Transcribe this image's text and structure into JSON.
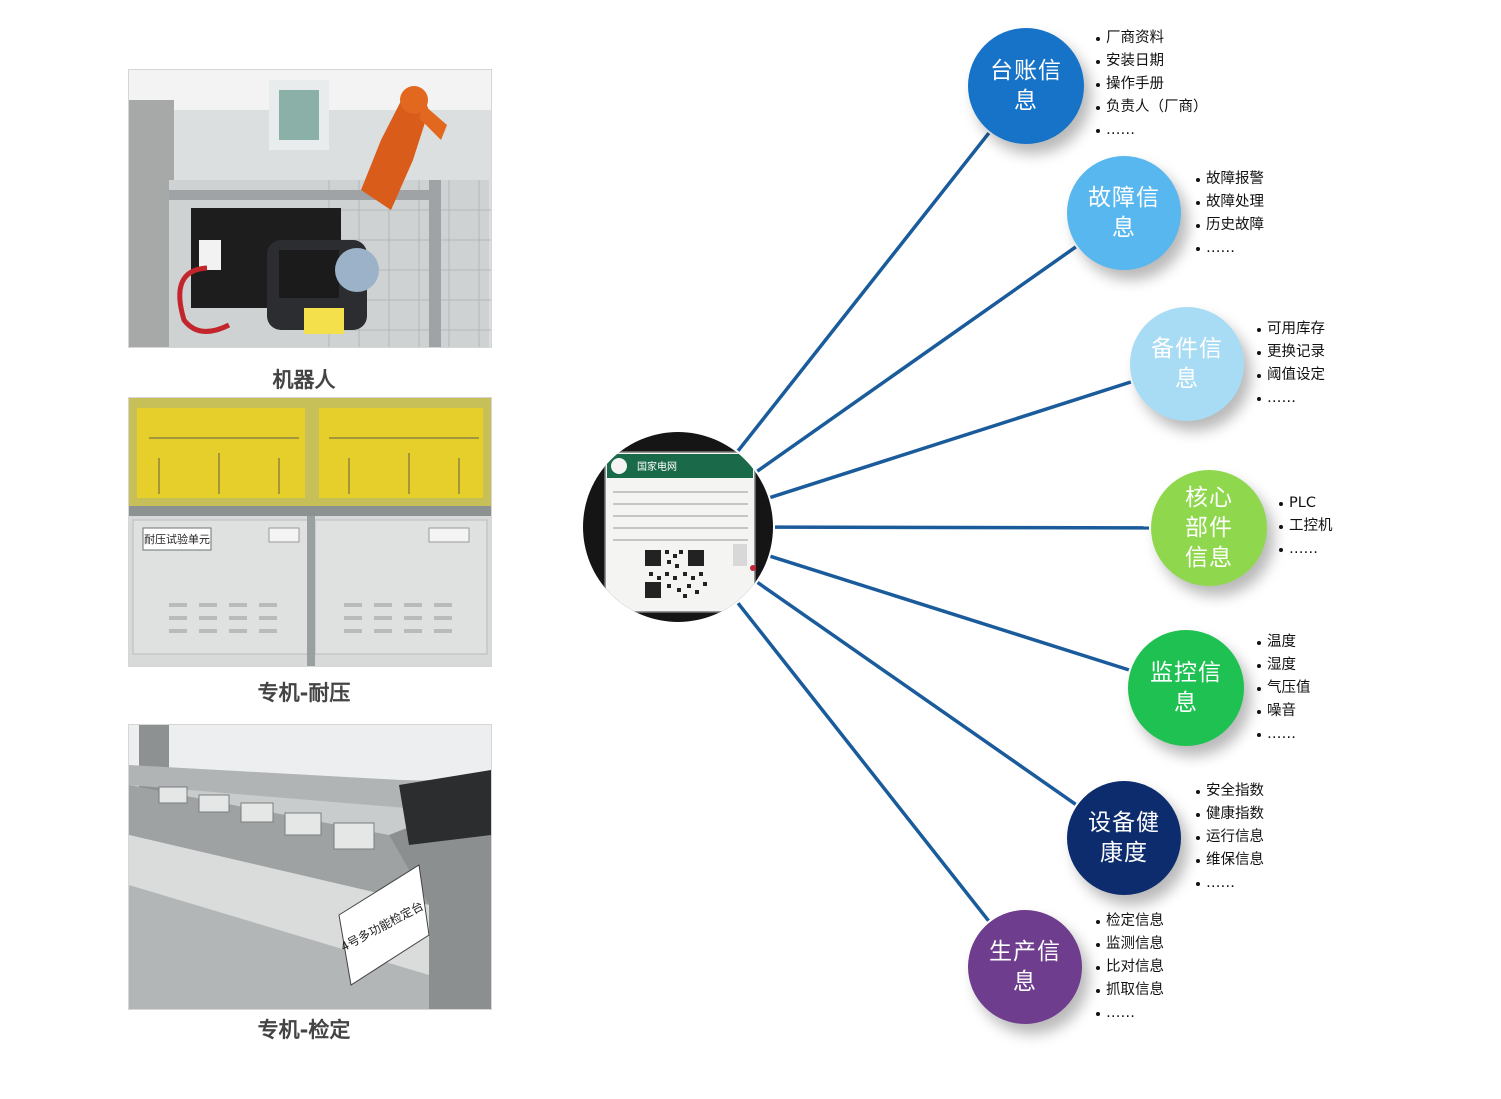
{
  "equipment": [
    {
      "caption": "机器人"
    },
    {
      "caption": "专机-耐压",
      "panel_label": "耐压试验单元"
    },
    {
      "caption": "专机-检定",
      "panel_label": "4号多功能检定台"
    }
  ],
  "hub": {
    "label_header": "国家电网"
  },
  "categories": [
    {
      "id": "ledger",
      "lines": [
        "台账信",
        "息"
      ],
      "color": "#1673c8",
      "items": [
        "厂商资料",
        "安装日期",
        "操作手册",
        "负责人（厂商）",
        "……"
      ]
    },
    {
      "id": "fault",
      "lines": [
        "故障信",
        "息"
      ],
      "color": "#58b7ee",
      "items": [
        "故障报警",
        "故障处理",
        "历史故障",
        "……"
      ]
    },
    {
      "id": "spare",
      "lines": [
        "备件信",
        "息"
      ],
      "color": "#a8dcf4",
      "items": [
        "可用库存",
        "更换记录",
        "阈值设定",
        "……"
      ]
    },
    {
      "id": "core",
      "lines": [
        "核心",
        "部件",
        "信息"
      ],
      "color": "#8fd84e",
      "items": [
        "PLC",
        "工控机",
        "……"
      ]
    },
    {
      "id": "monitor",
      "lines": [
        "监控信",
        "息"
      ],
      "color": "#1fc153",
      "items": [
        "温度",
        "湿度",
        "气压值",
        "噪音",
        "……"
      ]
    },
    {
      "id": "health",
      "lines": [
        "设备健",
        "康度"
      ],
      "color": "#0d2c6e",
      "items": [
        "安全指数",
        "健康指数",
        "运行信息",
        "维保信息",
        "……"
      ]
    },
    {
      "id": "production",
      "lines": [
        "生产信",
        "息"
      ],
      "color": "#6e3d8d",
      "items": [
        "检定信息",
        "监测信息",
        "比对信息",
        "抓取信息",
        "……"
      ]
    }
  ],
  "link_color": "#1a5b9b"
}
